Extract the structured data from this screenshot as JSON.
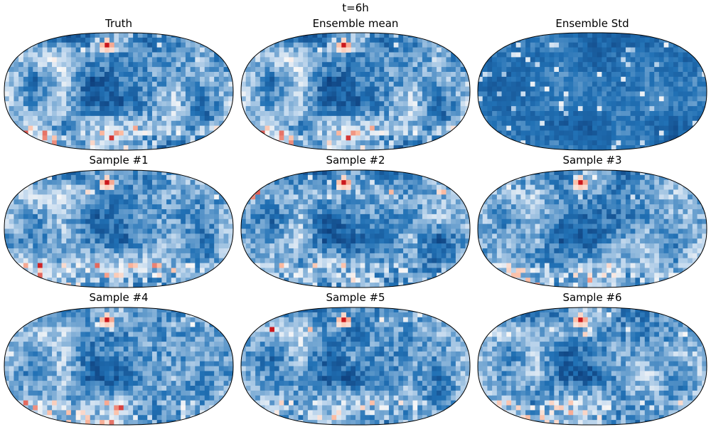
{
  "figure": {
    "title": "t=6h"
  },
  "chart_data": {
    "type": "heatmap",
    "title": "t=6h",
    "projection": "Robinson (global)",
    "colormap": "RdBu (diverging, blue-dominant fields)",
    "colors": {
      "blue_dark": "#08306b",
      "blue_mid": "#2171b5",
      "blue_light": "#c6dbef",
      "neutral": "#f7f7f7",
      "red_light": "#fcbba1",
      "red_dark": "#cb181d",
      "outline": "#000000"
    },
    "panels": [
      {
        "title": "Truth",
        "kind": "field",
        "seed": 11
      },
      {
        "title": "Ensemble mean",
        "kind": "field",
        "seed": 11
      },
      {
        "title": "Ensemble Std",
        "kind": "std",
        "seed": 5
      },
      {
        "title": "Sample #1",
        "kind": "field",
        "seed": 21
      },
      {
        "title": "Sample #2",
        "kind": "field",
        "seed": 32
      },
      {
        "title": "Sample #3",
        "kind": "field",
        "seed": 43
      },
      {
        "title": "Sample #4",
        "kind": "field",
        "seed": 54
      },
      {
        "title": "Sample #5",
        "kind": "field",
        "seed": 65
      },
      {
        "title": "Sample #6",
        "kind": "field",
        "seed": 76
      }
    ]
  }
}
